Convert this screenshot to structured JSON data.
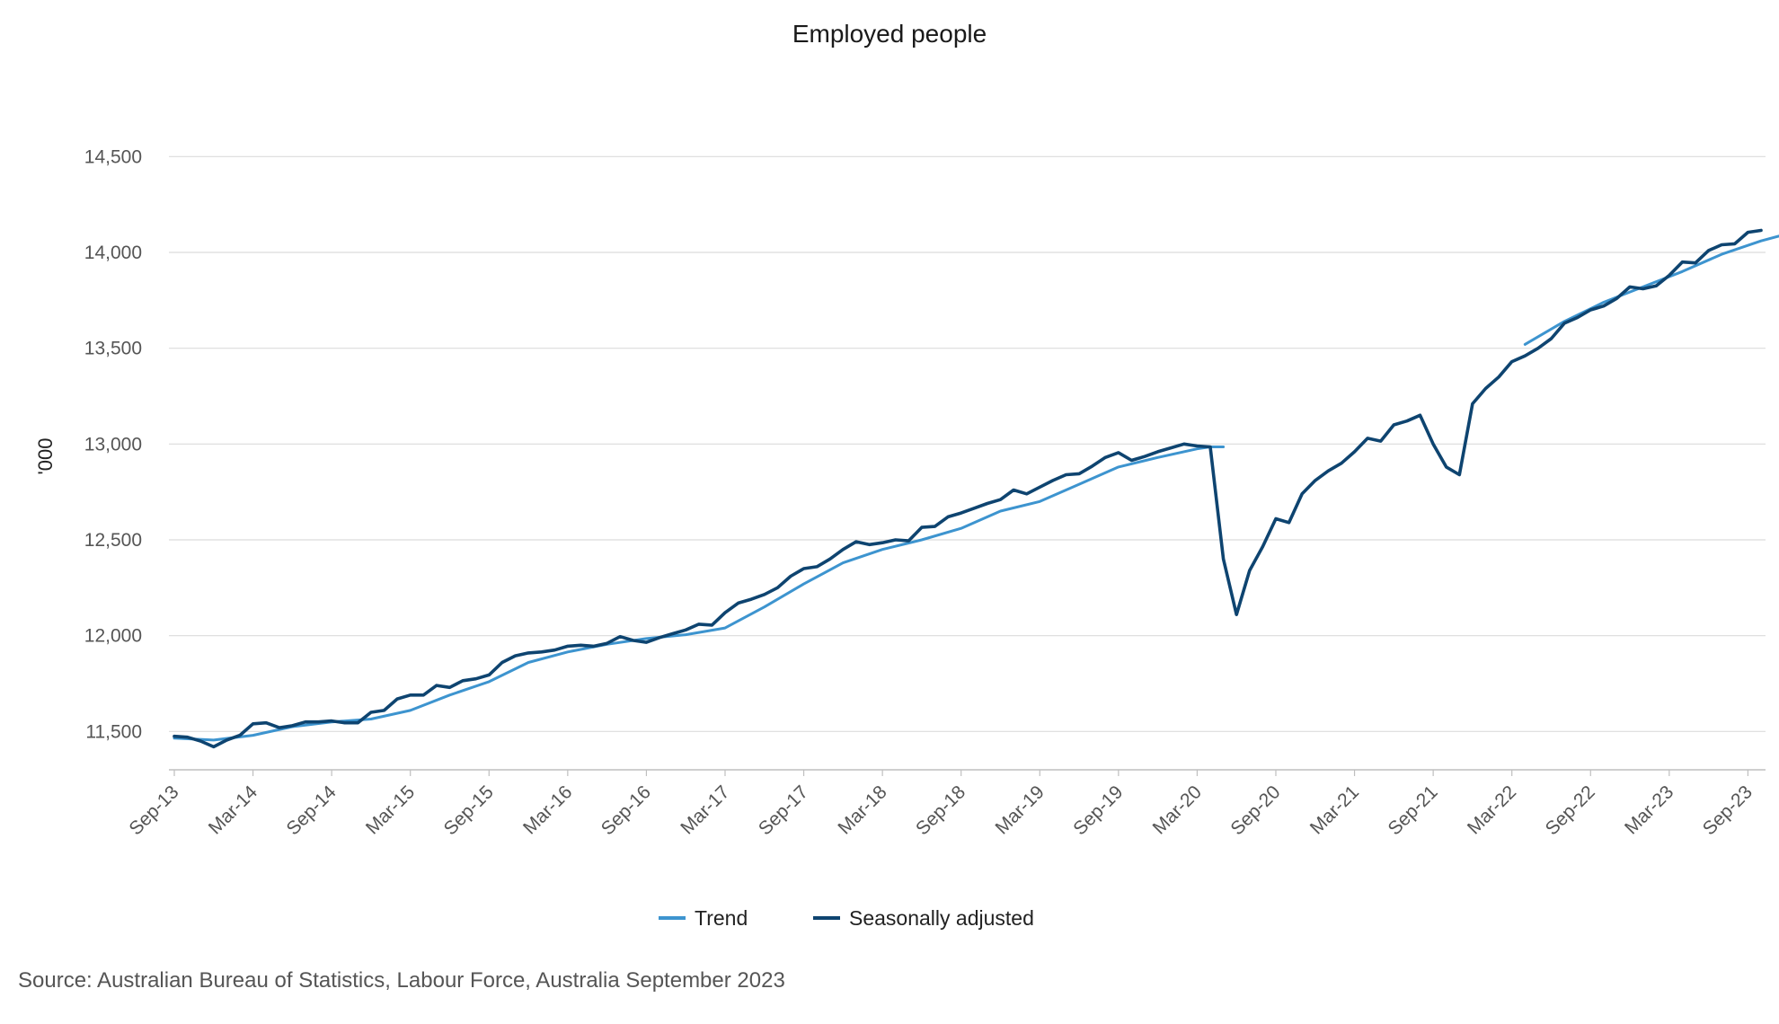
{
  "chart_data": {
    "type": "line",
    "title": "Employed people",
    "ylabel": "'000",
    "xlabel": "",
    "ylim": [
      11300,
      14600
    ],
    "yticks": [
      "11,500",
      "12,000",
      "12,500",
      "13,000",
      "13,500",
      "14,000",
      "14,500"
    ],
    "ytick_values": [
      11500,
      12000,
      12500,
      13000,
      13500,
      14000,
      14500
    ],
    "xticks": [
      "Sep-13",
      "Mar-14",
      "Sep-14",
      "Mar-15",
      "Sep-15",
      "Mar-16",
      "Sep-16",
      "Mar-17",
      "Sep-17",
      "Mar-18",
      "Sep-18",
      "Mar-19",
      "Sep-19",
      "Mar-20",
      "Sep-20",
      "Mar-21",
      "Sep-21",
      "Mar-22",
      "Sep-22",
      "Mar-23",
      "Sep-23"
    ],
    "grid": "horizontal",
    "legend_position": "bottom",
    "series": [
      {
        "name": "Trend",
        "color": "#3d94cf",
        "segments": [
          [
            [
              0,
              11465
            ],
            [
              3,
              11455
            ],
            [
              6,
              11480
            ],
            [
              9,
              11525
            ],
            [
              12,
              11550
            ],
            [
              15,
              11565
            ],
            [
              18,
              11610
            ],
            [
              21,
              11690
            ],
            [
              24,
              11760
            ],
            [
              27,
              11860
            ],
            [
              30,
              11915
            ],
            [
              33,
              11955
            ],
            [
              36,
              11985
            ],
            [
              39,
              12005
            ],
            [
              42,
              12040
            ],
            [
              45,
              12150
            ],
            [
              48,
              12270
            ],
            [
              51,
              12380
            ],
            [
              54,
              12450
            ],
            [
              57,
              12500
            ],
            [
              60,
              12560
            ],
            [
              63,
              12650
            ],
            [
              66,
              12700
            ],
            [
              69,
              12790
            ],
            [
              72,
              12880
            ],
            [
              75,
              12930
            ],
            [
              78,
              12975
            ],
            [
              79,
              12985
            ],
            [
              80,
              12985
            ]
          ],
          [
            [
              103,
              13520
            ],
            [
              106,
              13640
            ],
            [
              109,
              13740
            ],
            [
              112,
              13820
            ],
            [
              115,
              13900
            ],
            [
              118,
              13990
            ],
            [
              121,
              14060
            ],
            [
              124,
              14115
            ]
          ]
        ]
      },
      {
        "name": "Seasonally adjusted",
        "color": "#0e4470",
        "segments": [
          [
            [
              0,
              11475
            ],
            [
              1,
              11470
            ],
            [
              2,
              11450
            ],
            [
              3,
              11420
            ],
            [
              4,
              11455
            ],
            [
              5,
              11480
            ],
            [
              6,
              11540
            ],
            [
              7,
              11545
            ],
            [
              8,
              11520
            ],
            [
              9,
              11530
            ],
            [
              10,
              11550
            ],
            [
              11,
              11550
            ],
            [
              12,
              11555
            ],
            [
              13,
              11545
            ],
            [
              14,
              11545
            ],
            [
              15,
              11600
            ],
            [
              16,
              11610
            ],
            [
              17,
              11670
            ],
            [
              18,
              11690
            ],
            [
              19,
              11690
            ],
            [
              20,
              11740
            ],
            [
              21,
              11730
            ],
            [
              22,
              11765
            ],
            [
              23,
              11775
            ],
            [
              24,
              11795
            ],
            [
              25,
              11860
            ],
            [
              26,
              11895
            ],
            [
              27,
              11910
            ],
            [
              28,
              11915
            ],
            [
              29,
              11925
            ],
            [
              30,
              11945
            ],
            [
              31,
              11950
            ],
            [
              32,
              11945
            ],
            [
              33,
              11960
            ],
            [
              34,
              11995
            ],
            [
              35,
              11975
            ],
            [
              36,
              11965
            ],
            [
              37,
              11990
            ],
            [
              38,
              12010
            ],
            [
              39,
              12030
            ],
            [
              40,
              12060
            ],
            [
              41,
              12055
            ],
            [
              42,
              12120
            ],
            [
              43,
              12170
            ],
            [
              44,
              12190
            ],
            [
              45,
              12215
            ],
            [
              46,
              12250
            ],
            [
              47,
              12310
            ],
            [
              48,
              12350
            ],
            [
              49,
              12360
            ],
            [
              50,
              12400
            ],
            [
              51,
              12450
            ],
            [
              52,
              12490
            ],
            [
              53,
              12475
            ],
            [
              54,
              12485
            ],
            [
              55,
              12500
            ],
            [
              56,
              12495
            ],
            [
              57,
              12565
            ],
            [
              58,
              12570
            ],
            [
              59,
              12620
            ],
            [
              60,
              12640
            ],
            [
              61,
              12665
            ],
            [
              62,
              12690
            ],
            [
              63,
              12710
            ],
            [
              64,
              12760
            ],
            [
              65,
              12740
            ],
            [
              66,
              12775
            ],
            [
              67,
              12810
            ],
            [
              68,
              12840
            ],
            [
              69,
              12845
            ],
            [
              70,
              12885
            ],
            [
              71,
              12930
            ],
            [
              72,
              12955
            ],
            [
              73,
              12915
            ],
            [
              74,
              12935
            ],
            [
              75,
              12960
            ],
            [
              76,
              12980
            ],
            [
              77,
              13000
            ],
            [
              78,
              12990
            ],
            [
              79,
              12985
            ],
            [
              80,
              12400
            ],
            [
              81,
              12110
            ],
            [
              82,
              12340
            ],
            [
              83,
              12465
            ],
            [
              84,
              12610
            ],
            [
              85,
              12590
            ],
            [
              86,
              12740
            ],
            [
              87,
              12810
            ],
            [
              88,
              12860
            ],
            [
              89,
              12900
            ],
            [
              90,
              12960
            ],
            [
              91,
              13030
            ],
            [
              92,
              13015
            ],
            [
              93,
              13100
            ],
            [
              94,
              13120
            ],
            [
              95,
              13150
            ],
            [
              96,
              13000
            ],
            [
              97,
              12880
            ],
            [
              98,
              12840
            ],
            [
              99,
              13210
            ],
            [
              100,
              13290
            ],
            [
              101,
              13350
            ],
            [
              102,
              13430
            ],
            [
              103,
              13460
            ],
            [
              104,
              13500
            ],
            [
              105,
              13550
            ],
            [
              106,
              13630
            ],
            [
              107,
              13660
            ],
            [
              108,
              13700
            ],
            [
              109,
              13720
            ],
            [
              110,
              13760
            ],
            [
              111,
              13820
            ],
            [
              112,
              13810
            ],
            [
              113,
              13825
            ],
            [
              114,
              13880
            ],
            [
              115,
              13950
            ],
            [
              116,
              13945
            ],
            [
              117,
              14010
            ],
            [
              118,
              14040
            ],
            [
              119,
              14045
            ],
            [
              120,
              14105
            ],
            [
              121,
              14115
            ]
          ]
        ]
      }
    ],
    "legend": [
      {
        "label": "Trend",
        "color": "#3d94cf"
      },
      {
        "label": "Seasonally adjusted",
        "color": "#0e4470"
      }
    ]
  },
  "footer": {
    "source": "Source: Australian Bureau of Statistics, Labour Force, Australia September 2023"
  }
}
